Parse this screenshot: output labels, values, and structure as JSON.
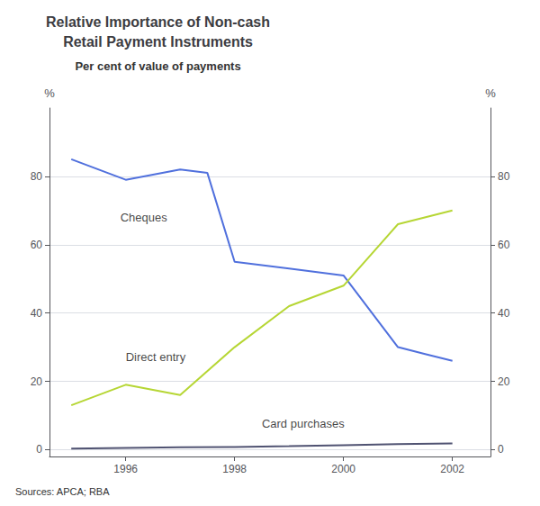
{
  "chart_data": {
    "type": "line",
    "title": "Relative Importance of Non-cash\nRetail Payment Instruments",
    "subtitle": "Per cent of value of payments",
    "source": "Sources: APCA; RBA",
    "ylabel": "%",
    "y2label": "%",
    "series": [
      {
        "name": "Cheques",
        "x": [
          1995,
          1996,
          1997,
          1997.5,
          1998,
          1999,
          2000,
          2001,
          2001.5,
          2002
        ],
        "values": [
          85,
          79,
          82,
          81,
          55,
          53,
          51,
          30,
          28,
          26
        ]
      },
      {
        "name": "Direct entry",
        "x": [
          1995,
          1996,
          1997,
          1998,
          1999,
          2000,
          2001,
          2002
        ],
        "values": [
          13,
          19,
          16,
          30,
          42,
          48,
          66,
          70
        ]
      },
      {
        "name": "Card purchases",
        "x": [
          1995,
          1996,
          1997,
          1998,
          1999,
          2000,
          2001,
          2002
        ],
        "values": [
          0.3,
          0.5,
          0.7,
          0.8,
          1.0,
          1.3,
          1.6,
          1.8
        ]
      }
    ],
    "annotations": [
      {
        "text": "Cheques",
        "x": 1995.9,
        "y": 68
      },
      {
        "text": "Direct entry",
        "x": 1996.0,
        "y": 27
      },
      {
        "text": "Card purchases",
        "x": 1998.5,
        "y": 7.5
      }
    ],
    "xlim": [
      1994.6,
      2002.7
    ],
    "xticks": [
      1996,
      1998,
      2000,
      2002
    ],
    "ylim": [
      -2,
      100
    ],
    "yticks": [
      0,
      20,
      40,
      60,
      80
    ],
    "y2lim": [
      -2,
      100
    ],
    "y2ticks": [
      0,
      20,
      40,
      60,
      80
    ],
    "grid": true
  }
}
